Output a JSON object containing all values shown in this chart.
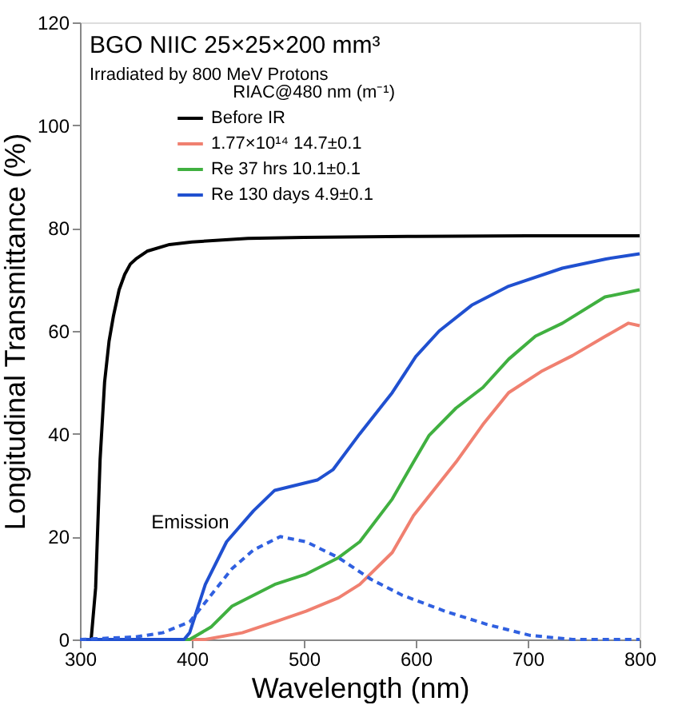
{
  "chart_data": {
    "type": "line",
    "title": "BGO NIIC  25×25×200 mm³",
    "subtitle": "Irradiated by 800 MeV Protons",
    "xlabel": "Wavelength (nm)",
    "ylabel": "Longitudinal Transmittance (%)",
    "legend_title": "RIAC@480 nm (m⁻¹)",
    "xlim": [
      300,
      800
    ],
    "ylim": [
      0,
      120
    ],
    "xticks": [
      300,
      400,
      500,
      600,
      700,
      800
    ],
    "yticks": [
      0,
      20,
      40,
      60,
      80,
      100,
      120
    ],
    "grid": false,
    "legend": "top left",
    "marker": "none",
    "series": [
      {
        "name": "Before IR",
        "color": "#000000",
        "x": [
          300,
          310,
          314,
          318,
          322,
          326,
          330,
          335,
          340,
          345,
          350,
          360,
          380,
          400,
          450,
          500,
          600,
          700,
          800
        ],
        "values": [
          0,
          0,
          10,
          35,
          50,
          58,
          63,
          68,
          71,
          73,
          74,
          75.5,
          76.8,
          77.3,
          78,
          78.2,
          78.4,
          78.5,
          78.5
        ]
      },
      {
        "name": "1.77×10¹⁴      14.7±0.1",
        "color": "#f08070",
        "x": [
          300,
          412,
          445,
          474,
          502,
          531,
          550,
          579,
          598,
          617,
          636,
          660,
          683,
          712,
          740,
          769,
          790,
          800
        ],
        "values": [
          0,
          0,
          1.3,
          3.4,
          5.5,
          8.1,
          10.7,
          16.9,
          24.1,
          29.3,
          34.5,
          41.8,
          48,
          52.1,
          55.2,
          58.9,
          61.5,
          61
        ]
      },
      {
        "name": "Re 37 hrs        10.1±0.1",
        "color": "#40b040",
        "x": [
          300,
          398,
          417,
          436,
          474,
          502,
          531,
          550,
          579,
          598,
          612,
          636,
          660,
          683,
          707,
          731,
          769,
          800
        ],
        "values": [
          0,
          0,
          2.4,
          6.5,
          10.7,
          12.7,
          15.9,
          19,
          27.3,
          34.5,
          39.7,
          45,
          49,
          54.5,
          59,
          61.5,
          66.6,
          68
        ]
      },
      {
        "name": "Re 130 days 4.9±0.1",
        "color": "#2050d0",
        "x": [
          300,
          393,
          398,
          412,
          431,
          455,
          474,
          493,
          512,
          526,
          550,
          579,
          600,
          621,
          650,
          683,
          731,
          770,
          800
        ],
        "values": [
          0,
          0,
          1.3,
          10.7,
          19,
          25,
          29,
          30,
          31,
          33,
          40,
          48,
          55,
          60,
          65,
          68.7,
          72.2,
          74,
          75
        ]
      },
      {
        "color": "#3060e0",
        "line_style": "dashed",
        "x": [
          300,
          350,
          374,
          398,
          417,
          436,
          455,
          479,
          502,
          531,
          560,
          588,
          626,
          664,
          702,
          740,
          800
        ],
        "values": [
          0,
          0.5,
          1.3,
          3.4,
          8.6,
          13.8,
          17.4,
          20,
          19,
          15.9,
          11.7,
          8.6,
          5.5,
          2.9,
          0.8,
          0,
          0
        ]
      }
    ],
    "annotations": [
      "Emission"
    ]
  }
}
